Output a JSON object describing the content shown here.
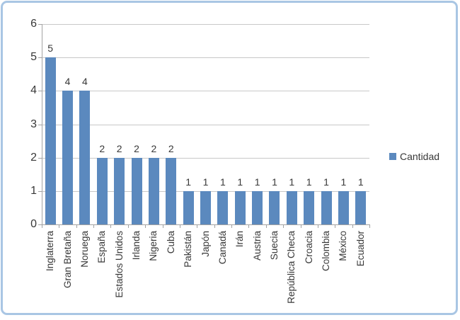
{
  "chart_data": {
    "type": "bar",
    "categories": [
      "Inglaterra",
      "Gran Bretaña",
      "Noruega",
      "España",
      "Estados Unidos",
      "Irlanda",
      "Nigeria",
      "Cuba",
      "Pakistán",
      "Japón",
      "Canadá",
      "Irán",
      "Austria",
      "Suecia",
      "República Checa",
      "Croacia",
      "Colombia",
      "México",
      "Ecuador"
    ],
    "values": [
      5,
      4,
      4,
      2,
      2,
      2,
      2,
      2,
      1,
      1,
      1,
      1,
      1,
      1,
      1,
      1,
      1,
      1,
      1
    ],
    "series_name": "Cantidad",
    "title": "",
    "xlabel": "",
    "ylabel": "",
    "ylim": [
      0,
      6
    ],
    "yticks": [
      0,
      1,
      2,
      3,
      4,
      5,
      6
    ],
    "grid": true,
    "data_labels_shown": true,
    "legend": {
      "label": "Cantidad",
      "position": "right"
    }
  },
  "colors": {
    "bar": "#5b89be",
    "gridline": "#c8c8c8",
    "axis_line": "#a3a3a3",
    "text": "#383838",
    "frame_border": "#a9c6e4",
    "background": "#ffffff"
  }
}
